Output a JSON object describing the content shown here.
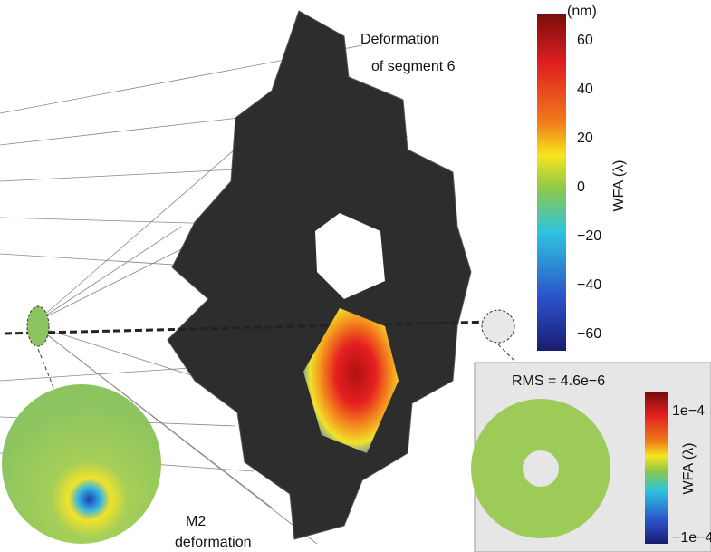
{
  "labels": {
    "segment_title": "Deformation",
    "segment_subtitle": "of segment 6",
    "m2_title": "M2",
    "m2_subtitle": "deformation",
    "rms": "RMS = 4.6e−6"
  },
  "main_colorbar": {
    "unit": "(nm)",
    "axis_label": "WFA (λ)",
    "ticks": [
      "60",
      "40",
      "20",
      "0",
      "−20",
      "−40",
      "−60"
    ]
  },
  "inset_colorbar": {
    "axis_label": "WFA (λ)",
    "ticks": [
      "1e−4",
      "−1e−4"
    ]
  }
}
